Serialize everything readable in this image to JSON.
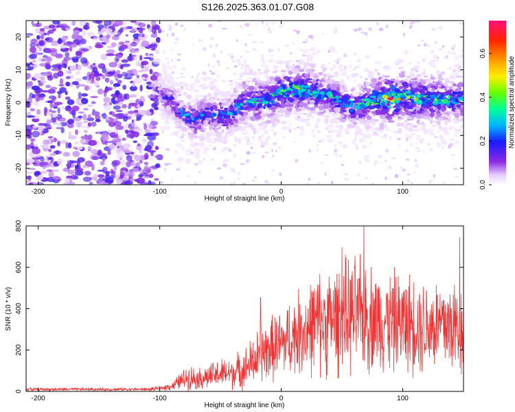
{
  "title": "S126.2025.363.01.07.G08",
  "chart_data": [
    {
      "type": "heatmap",
      "xlabel": "Height of straight line (km)",
      "ylabel": "Frequency (Hz)",
      "xlim": [
        -210,
        150
      ],
      "ylim": [
        -25,
        25
      ],
      "x_ticks": [
        -200,
        -100,
        0,
        100
      ],
      "y_ticks": [
        -20,
        -10,
        0,
        10,
        20
      ],
      "colorbar": {
        "label": "Normalized spectral amplitude",
        "range": [
          0.0,
          0.75
        ],
        "ticks": [
          0.0,
          0.2,
          0.4,
          0.6
        ]
      },
      "ridge": {
        "description_points_x_km": [
          -100,
          -90,
          -80,
          -70,
          -60,
          -50,
          -40,
          -30,
          -20,
          -10,
          0,
          10,
          20,
          30,
          40,
          50,
          60,
          70,
          80,
          90,
          100,
          110,
          120,
          130,
          140,
          150
        ],
        "center_freq_hz": [
          3,
          0,
          -4,
          -5,
          -3,
          -4,
          -3,
          1,
          0,
          1,
          3,
          4,
          4,
          3,
          2,
          0,
          -1,
          0,
          1,
          1,
          2,
          1,
          1,
          1,
          1,
          1
        ],
        "peak_amplitude": [
          0.15,
          0.2,
          0.25,
          0.3,
          0.25,
          0.3,
          0.3,
          0.35,
          0.35,
          0.4,
          0.4,
          0.45,
          0.45,
          0.4,
          0.35,
          0.3,
          0.35,
          0.4,
          0.45,
          0.75,
          0.45,
          0.45,
          0.4,
          0.4,
          0.35,
          0.35
        ]
      }
    },
    {
      "type": "line",
      "xlabel": "Height of straight line (km)",
      "ylabel": "SNR (10 * v/v)",
      "xlim": [
        -210,
        150
      ],
      "ylim": [
        0,
        800
      ],
      "x_ticks": [
        -200,
        -100,
        0,
        100
      ],
      "y_ticks": [
        0,
        200,
        400,
        600,
        800
      ],
      "color": "#ee3333",
      "envelope": {
        "x": [
          -210,
          -110,
          -100,
          -90,
          -80,
          -75,
          -70,
          -60,
          -50,
          -40,
          -30,
          -20,
          -10,
          0,
          10,
          20,
          30,
          40,
          50,
          60,
          70,
          80,
          90,
          100,
          110,
          120,
          130,
          140,
          150
        ],
        "mean": [
          10,
          10,
          15,
          25,
          60,
          70,
          60,
          70,
          85,
          90,
          110,
          160,
          200,
          230,
          270,
          300,
          330,
          340,
          360,
          370,
          360,
          350,
          340,
          330,
          330,
          320,
          320,
          320,
          300
        ],
        "spread": [
          8,
          8,
          10,
          20,
          50,
          60,
          50,
          60,
          70,
          80,
          100,
          130,
          150,
          170,
          190,
          220,
          250,
          260,
          270,
          280,
          270,
          250,
          250,
          240,
          240,
          230,
          240,
          250,
          230
        ]
      },
      "notable_peaks": [
        {
          "x": 68,
          "y": 800
        },
        {
          "x": 50,
          "y": 695
        },
        {
          "x": 147,
          "y": 745
        },
        {
          "x": -17,
          "y": 455
        }
      ]
    }
  ]
}
